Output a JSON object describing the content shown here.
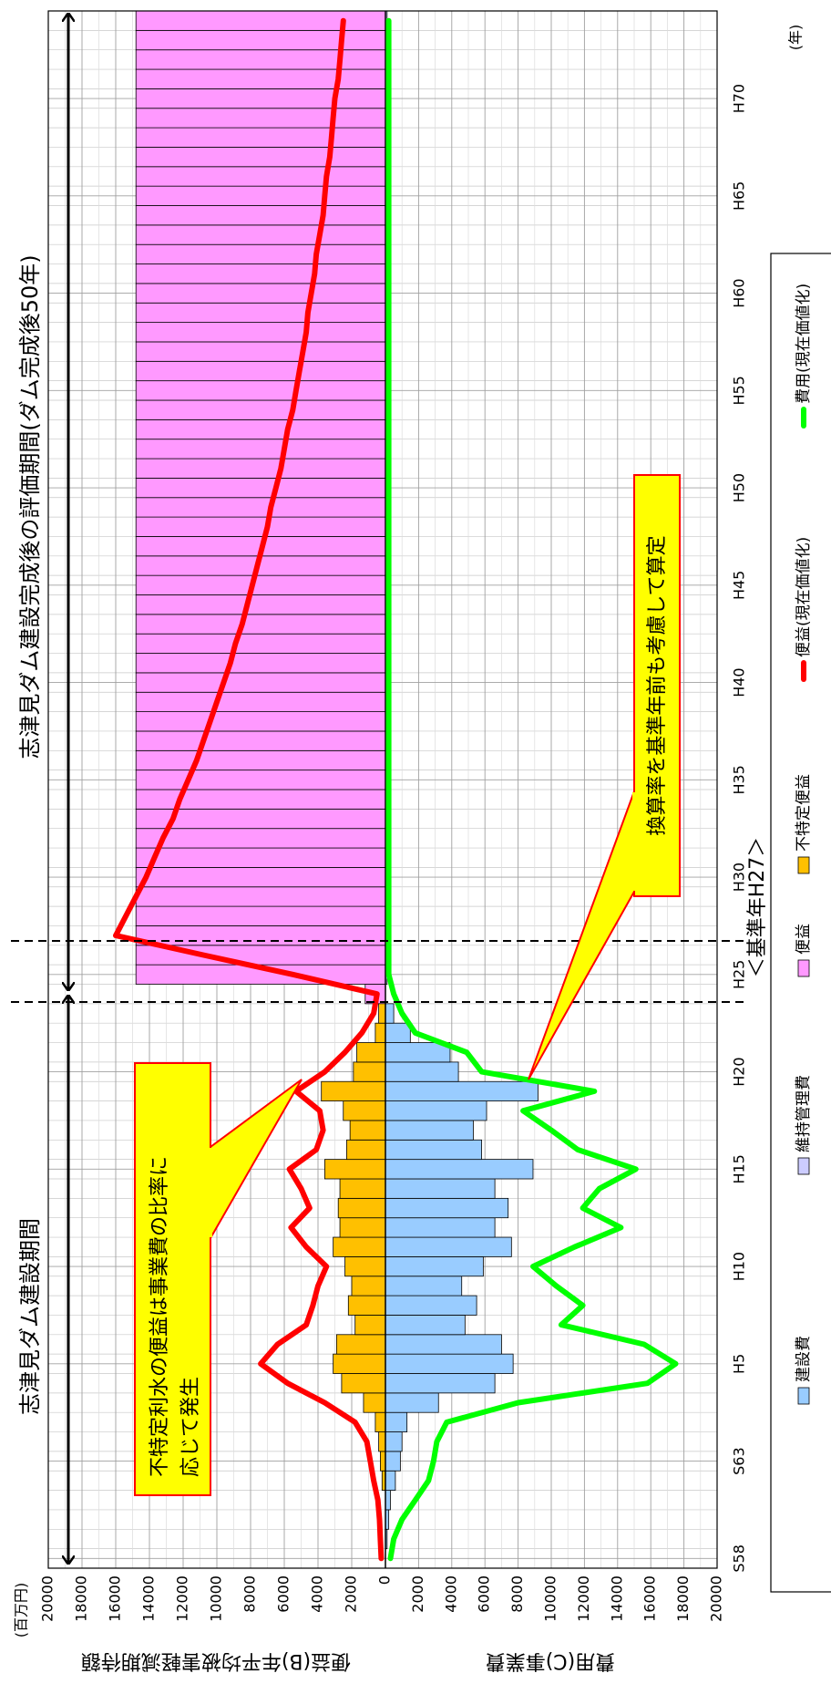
{
  "chart_data": {
    "type": "combo",
    "unit": "(百万円)",
    "x_label": "(年)",
    "y_label": "便益(B)年平均被害軽減期待額",
    "y2_label": "費用(C)事業費",
    "periods": [
      "志津見ダム建設期間",
      "志津見ダム建設完成後の評価期間(ダム完成後50年)"
    ],
    "base_year": "＜基準年H27＞",
    "annotations": [
      [
        "不特定利水の便益は事業費の比率に",
        "応じて発生"
      ],
      [
        "換算率を基準年前も考慮して算定"
      ]
    ],
    "categories": [
      "S58",
      null,
      null,
      null,
      null,
      "S63",
      null,
      null,
      null,
      null,
      "H5",
      null,
      null,
      null,
      null,
      "H10",
      null,
      null,
      null,
      null,
      "H15",
      null,
      null,
      null,
      null,
      "H20",
      null,
      null,
      null,
      null,
      "H25",
      null,
      null,
      null,
      null,
      "H30",
      null,
      null,
      null,
      null,
      "H35",
      null,
      null,
      null,
      null,
      "H40",
      null,
      null,
      null,
      null,
      "H45",
      null,
      null,
      null,
      null,
      "H50",
      null,
      null,
      null,
      null,
      "H55",
      null,
      null,
      null,
      null,
      "H60",
      null,
      null,
      null,
      null,
      "H65",
      null,
      null,
      null,
      null,
      "H70",
      null,
      null,
      null,
      null
    ],
    "ylim": [
      0,
      20000
    ],
    "yticks": [
      0,
      2000,
      4000,
      6000,
      8000,
      10000,
      12000,
      14000,
      16000,
      18000,
      20000
    ],
    "y2lim": [
      0,
      20000
    ],
    "y2ticks": [
      2000,
      4000,
      6000,
      8000,
      10000,
      12000,
      14000,
      16000,
      18000,
      20000
    ],
    "grid": true,
    "legend": "bottom",
    "series": [
      {
        "name": "建設費",
        "type": "bar",
        "axis": "y2",
        "color": "#99ccff",
        "values": [
          null,
          100,
          200,
          300,
          600,
          900,
          1000,
          1300,
          3200,
          6600,
          7700,
          7000,
          4800,
          5500,
          4600,
          5900,
          7600,
          6600,
          7400,
          6600,
          8900,
          5800,
          5300,
          6100,
          9200,
          4400,
          3900,
          1500,
          500,
          null,
          null,
          null,
          null,
          null,
          null,
          null,
          null,
          null,
          null,
          null,
          null,
          null,
          null,
          null,
          null,
          null,
          null,
          null,
          null,
          null,
          null,
          null,
          null,
          null,
          null,
          null,
          null,
          null,
          null,
          null,
          null,
          null,
          null,
          null,
          null,
          null,
          null,
          null,
          null,
          null,
          null,
          null,
          null,
          null,
          null,
          null,
          null,
          null,
          null,
          null
        ]
      },
      {
        "name": "維持管理費",
        "type": "bar",
        "axis": "y2",
        "color": "#ccccff",
        "values": [
          null,
          null,
          null,
          null,
          null,
          null,
          null,
          null,
          null,
          null,
          null,
          null,
          null,
          null,
          null,
          null,
          null,
          null,
          null,
          null,
          null,
          null,
          null,
          null,
          null,
          null,
          null,
          null,
          null,
          null,
          100,
          100,
          100,
          100,
          100,
          100,
          100,
          100,
          100,
          100,
          100,
          100,
          100,
          100,
          100,
          100,
          100,
          100,
          100,
          100,
          100,
          100,
          100,
          100,
          100,
          100,
          100,
          100,
          100,
          100,
          100,
          100,
          100,
          100,
          100,
          100,
          100,
          100,
          100,
          100,
          100,
          100,
          100,
          100,
          100,
          100,
          100,
          100,
          100,
          100
        ]
      },
      {
        "name": "便益",
        "type": "bar",
        "axis": "y",
        "color": "#ff99ff",
        "values": [
          null,
          null,
          null,
          null,
          null,
          null,
          null,
          null,
          null,
          null,
          null,
          null,
          null,
          null,
          null,
          null,
          null,
          null,
          null,
          null,
          null,
          null,
          null,
          null,
          null,
          null,
          null,
          null,
          null,
          1200,
          14800,
          14800,
          14800,
          14800,
          14800,
          14800,
          14800,
          14800,
          14800,
          14800,
          14800,
          14800,
          14800,
          14800,
          14800,
          14800,
          14800,
          14800,
          14800,
          14800,
          14800,
          14800,
          14800,
          14800,
          14800,
          14800,
          14800,
          14800,
          14800,
          14800,
          14800,
          14800,
          14800,
          14800,
          14800,
          14800,
          14800,
          14800,
          14800,
          14800,
          14800,
          14800,
          14800,
          14800,
          14800,
          14800,
          14800,
          14800,
          14800,
          14800
        ]
      },
      {
        "name": "不特定便益",
        "type": "bar",
        "axis": "y",
        "color": "#ffc000",
        "values": [
          null,
          null,
          null,
          null,
          200,
          300,
          400,
          600,
          1300,
          2600,
          3100,
          2900,
          1800,
          2200,
          2000,
          2400,
          3100,
          2700,
          2800,
          2700,
          3600,
          2300,
          2100,
          2500,
          3800,
          1900,
          1700,
          600,
          400,
          null,
          null,
          null,
          null,
          null,
          null,
          null,
          null,
          null,
          null,
          null,
          null,
          null,
          null,
          null,
          null,
          null,
          null,
          null,
          null,
          null,
          null,
          null,
          null,
          null,
          null,
          null,
          null,
          null,
          null,
          null,
          null,
          null,
          null,
          null,
          null,
          null,
          null,
          null,
          null,
          null,
          null,
          null,
          null,
          null,
          null,
          null,
          null,
          null,
          null,
          null
        ]
      },
      {
        "name": "便益(現在価値化)",
        "type": "line",
        "axis": "y",
        "color": "#ff0000",
        "values": [
          250,
          300,
          350,
          450,
          700,
          900,
          1100,
          1800,
          3600,
          5800,
          7400,
          6400,
          4700,
          4300,
          4000,
          3500,
          4700,
          5600,
          4500,
          5000,
          5700,
          4100,
          3700,
          3900,
          5300,
          3600,
          2400,
          1400,
          700,
          500,
          5500,
          10800,
          16000,
          15400,
          14800,
          14200,
          13700,
          13200,
          12600,
          12200,
          11700,
          11200,
          10800,
          10400,
          10000,
          9600,
          9200,
          8900,
          8500,
          8200,
          7900,
          7600,
          7300,
          7000,
          6800,
          6500,
          6200,
          6000,
          5800,
          5500,
          5300,
          5100,
          4900,
          4700,
          4600,
          4400,
          4200,
          4100,
          3900,
          3700,
          3600,
          3500,
          3300,
          3200,
          3100,
          3000,
          2800,
          2700,
          2600,
          2500
        ]
      },
      {
        "name": "費用(現在価値化)",
        "type": "line",
        "axis": "y2",
        "color": "#00ff00",
        "values": [
          300,
          500,
          1000,
          1800,
          2600,
          2900,
          3100,
          3700,
          8000,
          15800,
          17500,
          15600,
          10600,
          11900,
          10300,
          8900,
          11400,
          14200,
          11900,
          12900,
          15100,
          11600,
          10000,
          8300,
          12600,
          5800,
          4900,
          1800,
          1000,
          500,
          200,
          200,
          200,
          200,
          200,
          200,
          200,
          200,
          200,
          200,
          200,
          200,
          200,
          200,
          200,
          200,
          200,
          200,
          200,
          200,
          200,
          200,
          200,
          200,
          200,
          200,
          200,
          200,
          200,
          200,
          200,
          200,
          200,
          200,
          200,
          200,
          200,
          200,
          200,
          200,
          200,
          200,
          200,
          200,
          200,
          200,
          200,
          200,
          200,
          200
        ]
      }
    ]
  }
}
